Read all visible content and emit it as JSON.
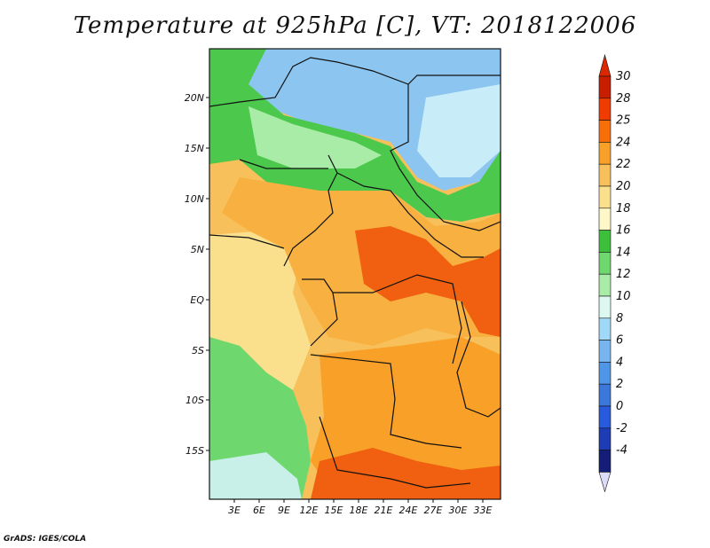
{
  "title": "Temperature at 925hPa [C], VT: 2018122006",
  "credit": "GrADS: IGES/COLA",
  "lat_labels": [
    "20N",
    "15N",
    "10N",
    "5N",
    "EQ",
    "5S",
    "10S",
    "15S"
  ],
  "lon_labels": [
    "3E",
    "6E",
    "9E",
    "12E",
    "15E",
    "18E",
    "21E",
    "24E",
    "27E",
    "30E",
    "33E"
  ],
  "colorbar": {
    "labels": [
      "30",
      "28",
      "25",
      "24",
      "22",
      "20",
      "18",
      "16",
      "14",
      "12",
      "10",
      "8",
      "6",
      "4",
      "2",
      "0",
      "-2",
      "-4"
    ],
    "colors": [
      "#c81e00",
      "#f03c00",
      "#f86e0a",
      "#f8a028",
      "#f8c05a",
      "#fae08c",
      "#fef8c8",
      "#3cc03c",
      "#6ed86e",
      "#a8eca8",
      "#dcf8f0",
      "#a0d8f8",
      "#78b4f0",
      "#5096e6",
      "#3c78dc",
      "#285adc",
      "#1e3cb4",
      "#141e78"
    ],
    "top_triangle": "#dc2800",
    "bottom_triangle": "#dcdcf8"
  },
  "regions": [
    {
      "name": "sahara-blue",
      "color": "#8cc6f0"
    },
    {
      "name": "sahara-light",
      "color": "#c8ecf8"
    },
    {
      "name": "sahel-green",
      "color": "#4cc84c"
    },
    {
      "name": "sahel-light",
      "color": "#a8eca8"
    },
    {
      "name": "west-coast",
      "color": "#fae08c"
    },
    {
      "name": "central-orange",
      "color": "#f8b040"
    },
    {
      "name": "hot-core",
      "color": "#f06010"
    },
    {
      "name": "south-orange",
      "color": "#f8a028"
    },
    {
      "name": "angola-coast",
      "color": "#6ed86e"
    }
  ]
}
